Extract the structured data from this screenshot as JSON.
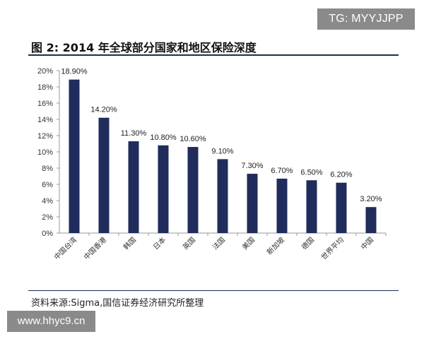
{
  "badge": {
    "text": "TG: MYYJJPP"
  },
  "figure": {
    "title": "图 2:  2014 年全球部分国家和地区保险深度",
    "source": "资料来源:Sigma,国信证券经济研究所整理"
  },
  "watermark": {
    "text": "www.hhyc9.cn"
  },
  "colors": {
    "bar": "#1f2c5c",
    "axis": "#999999",
    "rule": "#1f2a57"
  },
  "chart_data": {
    "type": "bar",
    "title": "",
    "xlabel": "",
    "ylabel": "",
    "ylim": [
      0,
      20
    ],
    "yticks": [
      "0%",
      "2%",
      "4%",
      "6%",
      "8%",
      "10%",
      "12%",
      "14%",
      "16%",
      "18%",
      "20%"
    ],
    "grid": false,
    "legend": "none",
    "categories": [
      "中国台湾",
      "中国香港",
      "韩国",
      "日本",
      "英国",
      "法国",
      "美国",
      "新加坡",
      "德国",
      "世界平均",
      "中国"
    ],
    "values": [
      18.9,
      14.2,
      11.3,
      10.8,
      10.6,
      9.1,
      7.3,
      6.7,
      6.5,
      6.2,
      3.2
    ],
    "data_labels": [
      "18.90%",
      "14.20%",
      "11.30%",
      "10.80%",
      "10.60%",
      "9.10%",
      "7.30%",
      "6.70%",
      "6.50%",
      "6.20%",
      "3.20%"
    ]
  }
}
